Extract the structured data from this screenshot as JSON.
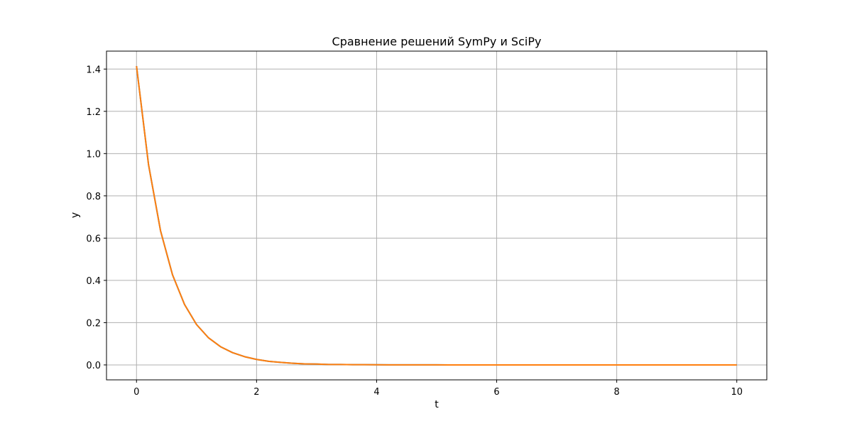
{
  "chart_data": {
    "type": "line",
    "title": "Сравнение решений SymPy и SciPy",
    "xlabel": "t",
    "ylabel": "y",
    "xlim": [
      -0.5,
      10.5
    ],
    "ylim": [
      -0.0707,
      1.4849
    ],
    "xticks": [
      0,
      2,
      4,
      6,
      8,
      10
    ],
    "xtick_labels": [
      "0",
      "2",
      "4",
      "6",
      "8",
      "10"
    ],
    "yticks": [
      0.0,
      0.2,
      0.4,
      0.6,
      0.8,
      1.0,
      1.2,
      1.4
    ],
    "ytick_labels": [
      "0.0",
      "0.2",
      "0.4",
      "0.6",
      "0.8",
      "1.0",
      "1.2",
      "1.4"
    ],
    "grid": true,
    "series": [
      {
        "color": "#1f77b4",
        "x": [
          0,
          0.2,
          0.4,
          0.6,
          0.8,
          1.0,
          1.2,
          1.4,
          1.6,
          1.8,
          2.0,
          2.2,
          2.4,
          2.6,
          2.8,
          3.0,
          3.2,
          3.4,
          3.6,
          3.8,
          4.0,
          4.2,
          4.4,
          4.6,
          4.8,
          5.0,
          5.2,
          5.4,
          5.6,
          5.8,
          6.0,
          6.2,
          6.4,
          6.6,
          6.8,
          7.0,
          7.2,
          7.4,
          7.6,
          7.8,
          8.0,
          8.2,
          8.4,
          8.6,
          8.8,
          9.0,
          9.2,
          9.4,
          9.6,
          9.8,
          10.0
        ],
        "y": [
          1.414,
          0.948,
          0.635,
          0.426,
          0.286,
          0.191,
          0.128,
          0.086,
          0.058,
          0.039,
          0.026,
          0.017,
          0.012,
          0.008,
          0.005,
          0.004,
          0.002,
          0.002,
          0.001,
          0.001,
          0.0005,
          0.0003,
          0.0002,
          0.0001,
          0.0001,
          0.0001,
          0.0,
          0.0,
          0.0,
          0.0,
          0.0,
          0.0,
          0.0,
          0.0,
          0.0,
          0.0,
          0.0,
          0.0,
          0.0,
          0.0,
          0.0,
          0.0,
          0.0,
          0.0,
          0.0,
          0.0,
          0.0,
          0.0,
          0.0,
          0.0,
          0.0
        ]
      },
      {
        "color": "#ff7f0e",
        "x": [
          0,
          0.2,
          0.4,
          0.6,
          0.8,
          1.0,
          1.2,
          1.4,
          1.6,
          1.8,
          2.0,
          2.2,
          2.4,
          2.6,
          2.8,
          3.0,
          3.2,
          3.4,
          3.6,
          3.8,
          4.0,
          4.2,
          4.4,
          4.6,
          4.8,
          5.0,
          5.2,
          5.4,
          5.6,
          5.8,
          6.0,
          6.2,
          6.4,
          6.6,
          6.8,
          7.0,
          7.2,
          7.4,
          7.6,
          7.8,
          8.0,
          8.2,
          8.4,
          8.6,
          8.8,
          9.0,
          9.2,
          9.4,
          9.6,
          9.8,
          10.0
        ],
        "y": [
          1.414,
          0.948,
          0.635,
          0.426,
          0.286,
          0.191,
          0.128,
          0.086,
          0.058,
          0.039,
          0.026,
          0.017,
          0.012,
          0.008,
          0.005,
          0.004,
          0.002,
          0.002,
          0.001,
          0.001,
          0.0005,
          0.0003,
          0.0002,
          0.0001,
          0.0001,
          0.0001,
          0.0,
          0.0,
          0.0,
          0.0,
          0.0,
          0.0,
          0.0,
          0.0,
          0.0,
          0.0,
          0.0,
          0.0,
          0.0,
          0.0,
          0.0,
          0.0,
          0.0,
          0.0,
          0.0,
          0.0,
          0.0,
          0.0,
          0.0,
          0.0,
          0.0
        ]
      }
    ]
  }
}
